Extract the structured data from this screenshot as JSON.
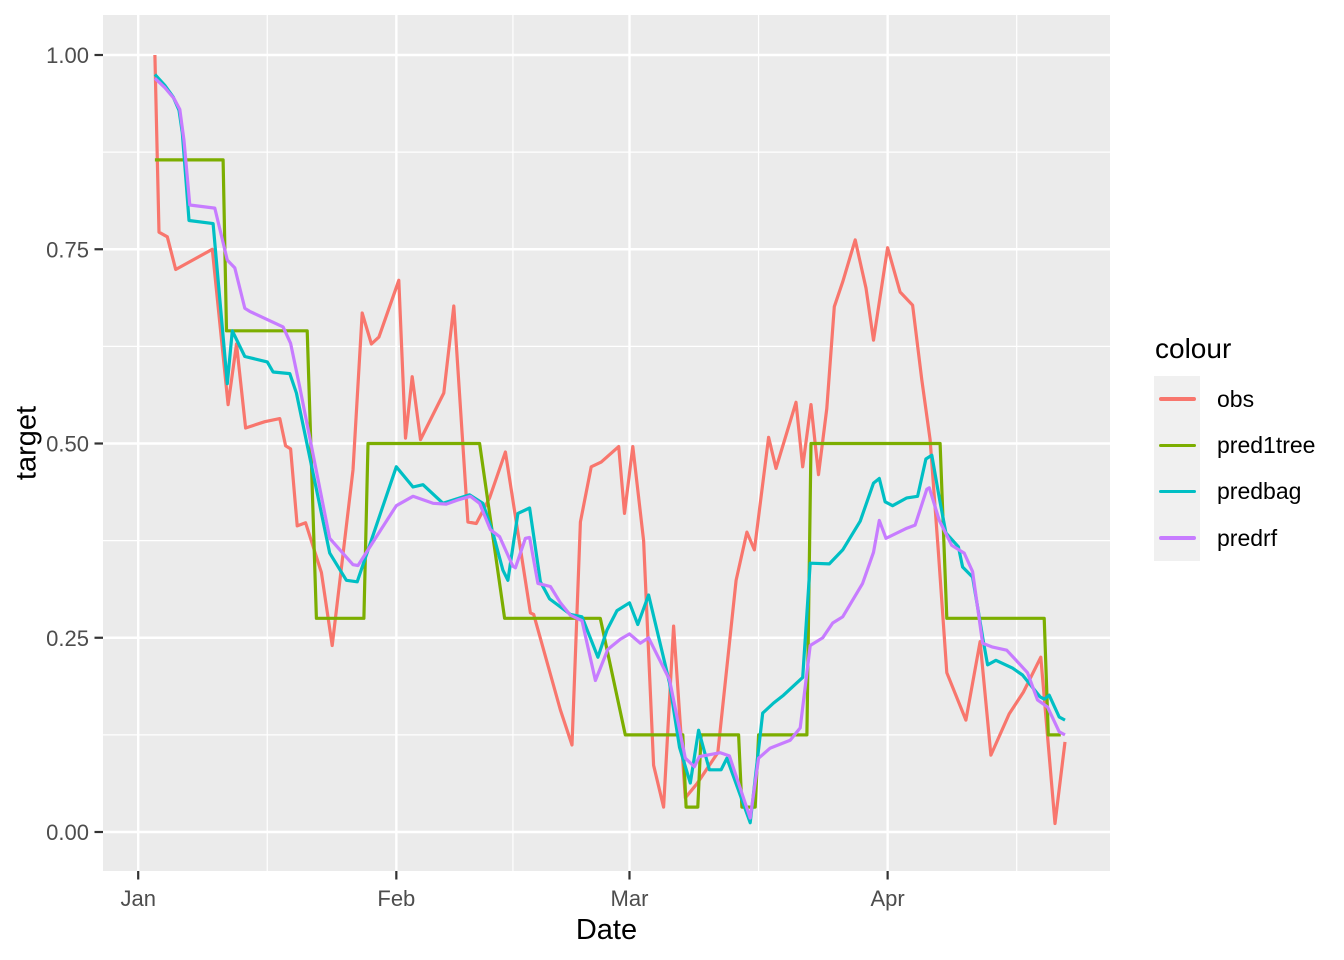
{
  "chart_data": {
    "type": "line",
    "title": "",
    "xlabel": "Date",
    "ylabel": "target",
    "x_axis": {
      "tick_labels": [
        "Jan",
        "Feb",
        "Mar",
        "Apr"
      ],
      "tick_days": [
        0,
        31,
        59,
        90
      ],
      "minor_days": [
        15.5,
        45,
        74.5,
        105.5
      ],
      "domain_days": [
        -4.2,
        117.2
      ],
      "note": "day index measured from Jan 1"
    },
    "y_axis": {
      "tick_labels": [
        "0.00",
        "0.25",
        "0.50",
        "0.75",
        "1.00"
      ],
      "tick_values": [
        0,
        0.25,
        0.5,
        0.75,
        1.0
      ],
      "minor_values": [
        0.125,
        0.375,
        0.625,
        0.875
      ],
      "range": [
        -0.05,
        1.05
      ]
    },
    "legend": {
      "title": "colour",
      "position": "right",
      "entries": [
        "obs",
        "pred1tree",
        "predbag",
        "predrf"
      ]
    },
    "style": {
      "panel_bg": "#EBEBEB",
      "grid_color": "#FFFFFF",
      "legend_key_bg": "#F0F0F0",
      "tick_color": "#333333",
      "tick_label_color": "#4D4D4D"
    },
    "series": [
      {
        "name": "obs",
        "color": "#F8766D",
        "points": [
          [
            2,
            1.0
          ],
          [
            2.5,
            0.772
          ],
          [
            3.5,
            0.766
          ],
          [
            4.5,
            0.724
          ],
          [
            8.9,
            0.75
          ],
          [
            10.8,
            0.55
          ],
          [
            11.8,
            0.628
          ],
          [
            12.9,
            0.52
          ],
          [
            15.2,
            0.528
          ],
          [
            17,
            0.532
          ],
          [
            17.7,
            0.497
          ],
          [
            18.3,
            0.493
          ],
          [
            19.1,
            0.394
          ],
          [
            20.1,
            0.398
          ],
          [
            22,
            0.334
          ],
          [
            23.3,
            0.24
          ],
          [
            25.8,
            0.466
          ],
          [
            26.9,
            0.668
          ],
          [
            28,
            0.628
          ],
          [
            28.9,
            0.637
          ],
          [
            31.3,
            0.71
          ],
          [
            32.1,
            0.507
          ],
          [
            32.9,
            0.586
          ],
          [
            33.9,
            0.505
          ],
          [
            36.7,
            0.565
          ],
          [
            37.9,
            0.677
          ],
          [
            39.6,
            0.399
          ],
          [
            40.6,
            0.397
          ],
          [
            42.2,
            0.43
          ],
          [
            44.1,
            0.489
          ],
          [
            47.1,
            0.282
          ],
          [
            47.5,
            0.28
          ],
          [
            50.7,
            0.157
          ],
          [
            52.1,
            0.112
          ],
          [
            53.1,
            0.399
          ],
          [
            54.4,
            0.47
          ],
          [
            55.6,
            0.476
          ],
          [
            57.7,
            0.496
          ],
          [
            58.4,
            0.41
          ],
          [
            59.4,
            0.496
          ],
          [
            60.7,
            0.375
          ],
          [
            61.9,
            0.086
          ],
          [
            63.1,
            0.032
          ],
          [
            64.3,
            0.265
          ],
          [
            65.7,
            0.044
          ],
          [
            67.1,
            0.062
          ],
          [
            69.6,
            0.102
          ],
          [
            71.8,
            0.324
          ],
          [
            73.1,
            0.386
          ],
          [
            74,
            0.363
          ],
          [
            75.7,
            0.508
          ],
          [
            76.6,
            0.468
          ],
          [
            79,
            0.553
          ],
          [
            79.8,
            0.47
          ],
          [
            80.8,
            0.55
          ],
          [
            81.7,
            0.46
          ],
          [
            82.7,
            0.545
          ],
          [
            83.6,
            0.676
          ],
          [
            84.6,
            0.708
          ],
          [
            86.1,
            0.762
          ],
          [
            87.4,
            0.7
          ],
          [
            88.3,
            0.633
          ],
          [
            90,
            0.752
          ],
          [
            91.5,
            0.695
          ],
          [
            93,
            0.678
          ],
          [
            94.1,
            0.582
          ],
          [
            95.1,
            0.505
          ],
          [
            96.1,
            0.36
          ],
          [
            97.1,
            0.205
          ],
          [
            99.4,
            0.144
          ],
          [
            101.1,
            0.245
          ],
          [
            102.4,
            0.099
          ],
          [
            104.6,
            0.152
          ],
          [
            106.3,
            0.18
          ],
          [
            108.4,
            0.225
          ],
          [
            110.1,
            0.011
          ],
          [
            111.3,
            0.116
          ]
        ]
      },
      {
        "name": "pred1tree",
        "color": "#7CAE00",
        "points": [
          [
            2,
            0.865
          ],
          [
            10.2,
            0.865
          ],
          [
            10.6,
            0.645
          ],
          [
            20.3,
            0.645
          ],
          [
            21.4,
            0.275
          ],
          [
            27.1,
            0.275
          ],
          [
            27.6,
            0.5
          ],
          [
            41,
            0.5
          ],
          [
            44,
            0.275
          ],
          [
            55.5,
            0.275
          ],
          [
            58.5,
            0.125
          ],
          [
            65.4,
            0.125
          ],
          [
            65.8,
            0.032
          ],
          [
            67.2,
            0.032
          ],
          [
            67.6,
            0.125
          ],
          [
            72.1,
            0.125
          ],
          [
            72.5,
            0.032
          ],
          [
            74.1,
            0.032
          ],
          [
            74.5,
            0.125
          ],
          [
            80.3,
            0.125
          ],
          [
            80.8,
            0.5
          ],
          [
            96.3,
            0.5
          ],
          [
            97.1,
            0.275
          ],
          [
            108.8,
            0.275
          ],
          [
            109.3,
            0.125
          ],
          [
            110.8,
            0.125
          ]
        ]
      },
      {
        "name": "predbag",
        "color": "#00BFC4",
        "points": [
          [
            2,
            0.975
          ],
          [
            3.2,
            0.961
          ],
          [
            4.2,
            0.946
          ],
          [
            4.9,
            0.929
          ],
          [
            5.3,
            0.9
          ],
          [
            5.8,
            0.83
          ],
          [
            6.1,
            0.787
          ],
          [
            9,
            0.783
          ],
          [
            10.7,
            0.577
          ],
          [
            11.3,
            0.645
          ],
          [
            12.8,
            0.612
          ],
          [
            15.5,
            0.605
          ],
          [
            16.2,
            0.592
          ],
          [
            18.2,
            0.59
          ],
          [
            19,
            0.565
          ],
          [
            23,
            0.359
          ],
          [
            25,
            0.324
          ],
          [
            26.3,
            0.322
          ],
          [
            31,
            0.47
          ],
          [
            33,
            0.444
          ],
          [
            34.2,
            0.447
          ],
          [
            36.6,
            0.423
          ],
          [
            39.8,
            0.434
          ],
          [
            41.4,
            0.423
          ],
          [
            42.6,
            0.385
          ],
          [
            43.8,
            0.337
          ],
          [
            44.4,
            0.324
          ],
          [
            45.6,
            0.41
          ],
          [
            47,
            0.417
          ],
          [
            48.3,
            0.322
          ],
          [
            49.4,
            0.3
          ],
          [
            51.9,
            0.28
          ],
          [
            53.3,
            0.277
          ],
          [
            55.2,
            0.225
          ],
          [
            56.3,
            0.26
          ],
          [
            57.5,
            0.285
          ],
          [
            59,
            0.295
          ],
          [
            60,
            0.267
          ],
          [
            61.3,
            0.305
          ],
          [
            63.8,
            0.192
          ],
          [
            65,
            0.109
          ],
          [
            66.3,
            0.063
          ],
          [
            67.3,
            0.131
          ],
          [
            68.6,
            0.08
          ],
          [
            70,
            0.08
          ],
          [
            70.7,
            0.095
          ],
          [
            73.5,
            0.012
          ],
          [
            75,
            0.153
          ],
          [
            76.3,
            0.166
          ],
          [
            77.5,
            0.176
          ],
          [
            79.8,
            0.199
          ],
          [
            80.7,
            0.346
          ],
          [
            83,
            0.345
          ],
          [
            84.6,
            0.363
          ],
          [
            86.7,
            0.4
          ],
          [
            88.3,
            0.449
          ],
          [
            89,
            0.455
          ],
          [
            89.7,
            0.425
          ],
          [
            90.6,
            0.42
          ],
          [
            92.3,
            0.43
          ],
          [
            93.6,
            0.432
          ],
          [
            94.6,
            0.48
          ],
          [
            95.3,
            0.485
          ],
          [
            96.2,
            0.43
          ],
          [
            97,
            0.385
          ],
          [
            98.5,
            0.367
          ],
          [
            99,
            0.341
          ],
          [
            100.2,
            0.328
          ],
          [
            101.5,
            0.245
          ],
          [
            102,
            0.215
          ],
          [
            103,
            0.221
          ],
          [
            105,
            0.211
          ],
          [
            106.2,
            0.202
          ],
          [
            108.3,
            0.174
          ],
          [
            108.8,
            0.171
          ],
          [
            109.4,
            0.176
          ],
          [
            110.6,
            0.148
          ],
          [
            111.3,
            0.144
          ]
        ]
      },
      {
        "name": "predrf",
        "color": "#C77CFF",
        "points": [
          [
            2,
            0.97
          ],
          [
            3.2,
            0.958
          ],
          [
            4.3,
            0.944
          ],
          [
            5,
            0.93
          ],
          [
            5.5,
            0.89
          ],
          [
            6.2,
            0.807
          ],
          [
            9.2,
            0.803
          ],
          [
            10.7,
            0.736
          ],
          [
            11.6,
            0.726
          ],
          [
            12.8,
            0.674
          ],
          [
            13.4,
            0.67
          ],
          [
            17.4,
            0.65
          ],
          [
            18.3,
            0.629
          ],
          [
            19.4,
            0.573
          ],
          [
            23,
            0.378
          ],
          [
            25.8,
            0.344
          ],
          [
            26.4,
            0.343
          ],
          [
            31,
            0.42
          ],
          [
            33,
            0.432
          ],
          [
            35.4,
            0.423
          ],
          [
            37,
            0.422
          ],
          [
            38.3,
            0.427
          ],
          [
            39.9,
            0.432
          ],
          [
            41,
            0.423
          ],
          [
            42.3,
            0.389
          ],
          [
            43.4,
            0.38
          ],
          [
            45,
            0.342
          ],
          [
            45.3,
            0.34
          ],
          [
            46.5,
            0.378
          ],
          [
            47,
            0.379
          ],
          [
            48,
            0.32
          ],
          [
            49.5,
            0.316
          ],
          [
            50.7,
            0.295
          ],
          [
            51.9,
            0.279
          ],
          [
            53.3,
            0.272
          ],
          [
            54.9,
            0.195
          ],
          [
            56.4,
            0.235
          ],
          [
            57.9,
            0.248
          ],
          [
            59,
            0.255
          ],
          [
            60.3,
            0.243
          ],
          [
            61.3,
            0.25
          ],
          [
            63.8,
            0.196
          ],
          [
            65.7,
            0.095
          ],
          [
            66.8,
            0.084
          ],
          [
            67.4,
            0.097
          ],
          [
            69.9,
            0.102
          ],
          [
            71,
            0.098
          ],
          [
            73.5,
            0.018
          ],
          [
            74.5,
            0.095
          ],
          [
            75.9,
            0.108
          ],
          [
            78.3,
            0.118
          ],
          [
            79.5,
            0.134
          ],
          [
            80.7,
            0.24
          ],
          [
            82.2,
            0.25
          ],
          [
            83.4,
            0.269
          ],
          [
            84.6,
            0.277
          ],
          [
            87,
            0.32
          ],
          [
            88.3,
            0.36
          ],
          [
            89,
            0.401
          ],
          [
            89.8,
            0.378
          ],
          [
            92.3,
            0.391
          ],
          [
            93.3,
            0.395
          ],
          [
            94.7,
            0.441
          ],
          [
            95,
            0.443
          ],
          [
            96.2,
            0.401
          ],
          [
            97.7,
            0.369
          ],
          [
            99.2,
            0.359
          ],
          [
            100.2,
            0.335
          ],
          [
            101.4,
            0.243
          ],
          [
            102.6,
            0.238
          ],
          [
            104.3,
            0.234
          ],
          [
            105.6,
            0.219
          ],
          [
            106.8,
            0.205
          ],
          [
            108,
            0.17
          ],
          [
            109.2,
            0.161
          ],
          [
            110.6,
            0.129
          ],
          [
            111.3,
            0.125
          ]
        ]
      }
    ]
  }
}
